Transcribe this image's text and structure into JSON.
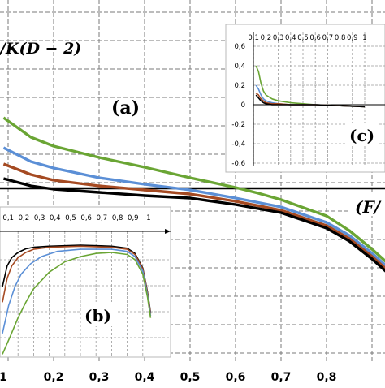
{
  "chart_data": [
    {
      "id": "a",
      "type": "line",
      "panel_label": "(a)",
      "ylabel": "/K(D − 2)",
      "xlabel": "(F/",
      "x_ticks": [
        "1",
        "0,2",
        "0,3",
        "0,4",
        "0,5",
        "0,6",
        "0,7",
        "0,8"
      ],
      "xlim": [
        0.09,
        0.94
      ],
      "ylim": [
        -1.2,
        1.6
      ],
      "grid": true,
      "series": [
        {
          "color": "#6aa534",
          "x": [
            0.09,
            0.15,
            0.2,
            0.3,
            0.4,
            0.5,
            0.6,
            0.65,
            0.7,
            0.8,
            0.85,
            0.9,
            0.94
          ],
          "y": [
            0.87,
            0.63,
            0.52,
            0.38,
            0.26,
            0.13,
            0.01,
            -0.06,
            -0.14,
            -0.34,
            -0.52,
            -0.75,
            -0.95
          ]
        },
        {
          "color": "#5b8fd6",
          "x": [
            0.09,
            0.15,
            0.2,
            0.3,
            0.4,
            0.5,
            0.6,
            0.7,
            0.8,
            0.85,
            0.9,
            0.94
          ],
          "y": [
            0.5,
            0.33,
            0.25,
            0.13,
            0.05,
            -0.02,
            -0.12,
            -0.23,
            -0.42,
            -0.58,
            -0.8,
            -1.0
          ]
        },
        {
          "color": "#a54a22",
          "x": [
            0.09,
            0.15,
            0.2,
            0.3,
            0.4,
            0.5,
            0.6,
            0.7,
            0.8,
            0.85,
            0.9,
            0.94
          ],
          "y": [
            0.3,
            0.17,
            0.1,
            0.03,
            -0.02,
            -0.07,
            -0.16,
            -0.27,
            -0.46,
            -0.62,
            -0.84,
            -1.04
          ]
        },
        {
          "color": "#000000",
          "x": [
            0.09,
            0.15,
            0.2,
            0.3,
            0.4,
            0.5,
            0.6,
            0.7,
            0.8,
            0.85,
            0.9,
            0.94
          ],
          "y": [
            0.12,
            0.03,
            -0.01,
            -0.05,
            -0.09,
            -0.12,
            -0.2,
            -0.3,
            -0.49,
            -0.65,
            -0.87,
            -1.07
          ]
        }
      ]
    },
    {
      "id": "b",
      "type": "line",
      "panel_label": "(b)",
      "x_ticks": [
        "0,1",
        "0,2",
        "0,3",
        "0,4",
        "0,5",
        "0,6",
        "0,7",
        "0,8",
        "0,9",
        "1"
      ],
      "xlim": [
        0,
        1
      ],
      "grid": true,
      "series": [
        {
          "color": "#000000",
          "x": [
            0.0,
            0.03,
            0.06,
            0.1,
            0.15,
            0.2,
            0.3,
            0.5,
            0.7,
            0.8,
            0.85,
            0.9,
            0.93,
            0.95
          ],
          "y": [
            0.6,
            0.8,
            0.88,
            0.93,
            0.965,
            0.98,
            0.99,
            1.0,
            0.99,
            0.97,
            0.92,
            0.78,
            0.55,
            0.35
          ]
        },
        {
          "color": "#a54a22",
          "x": [
            0.0,
            0.03,
            0.06,
            0.1,
            0.15,
            0.2,
            0.3,
            0.5,
            0.7,
            0.8,
            0.85,
            0.9,
            0.93,
            0.95
          ],
          "y": [
            0.45,
            0.68,
            0.8,
            0.88,
            0.93,
            0.96,
            0.98,
            0.99,
            0.98,
            0.96,
            0.91,
            0.77,
            0.54,
            0.34
          ]
        },
        {
          "color": "#5b8fd6",
          "x": [
            0.0,
            0.04,
            0.08,
            0.12,
            0.18,
            0.25,
            0.35,
            0.5,
            0.7,
            0.8,
            0.85,
            0.9,
            0.93,
            0.95
          ],
          "y": [
            0.15,
            0.42,
            0.6,
            0.72,
            0.82,
            0.89,
            0.94,
            0.96,
            0.96,
            0.94,
            0.89,
            0.75,
            0.52,
            0.32
          ]
        },
        {
          "color": "#6aa534",
          "x": [
            0.0,
            0.05,
            0.1,
            0.15,
            0.2,
            0.3,
            0.4,
            0.5,
            0.6,
            0.7,
            0.8,
            0.85,
            0.9,
            0.93,
            0.95
          ],
          "y": [
            -0.05,
            0.12,
            0.3,
            0.45,
            0.58,
            0.74,
            0.84,
            0.89,
            0.92,
            0.93,
            0.91,
            0.86,
            0.72,
            0.5,
            0.3
          ]
        }
      ]
    },
    {
      "id": "c",
      "type": "line",
      "panel_label": "(c)",
      "x_ticks": [
        "0,1",
        "0,2",
        "0,3",
        "0,4",
        "0,5",
        "0,6",
        "0,7",
        "0,8",
        "0,9",
        "1"
      ],
      "y_ticks": [
        "0,6",
        "0,4",
        "0,2",
        "0",
        "-0,2",
        "-0,4",
        "-0,6"
      ],
      "xlim": [
        0,
        1
      ],
      "ylim": [
        -0.6,
        0.6
      ],
      "grid": true,
      "series": [
        {
          "color": "#6aa534",
          "x": [
            0.12,
            0.14,
            0.16,
            0.18,
            0.2,
            0.25,
            0.3,
            0.4,
            0.5,
            0.6,
            0.8,
            1.0
          ],
          "y": [
            0.4,
            0.34,
            0.22,
            0.14,
            0.1,
            0.06,
            0.04,
            0.02,
            0.01,
            0.0,
            -0.01,
            -0.02
          ]
        },
        {
          "color": "#5b8fd6",
          "x": [
            0.12,
            0.14,
            0.16,
            0.18,
            0.2,
            0.25,
            0.3,
            0.4,
            0.5,
            0.6,
            0.8,
            1.0
          ],
          "y": [
            0.2,
            0.16,
            0.1,
            0.06,
            0.04,
            0.02,
            0.01,
            0.0,
            0.0,
            0.0,
            -0.01,
            -0.02
          ]
        },
        {
          "color": "#a54a22",
          "x": [
            0.12,
            0.14,
            0.16,
            0.18,
            0.2,
            0.25,
            0.3,
            0.4,
            0.5,
            0.6,
            0.8,
            1.0
          ],
          "y": [
            0.12,
            0.1,
            0.06,
            0.04,
            0.02,
            0.01,
            0.01,
            0.0,
            0.0,
            0.0,
            -0.01,
            -0.02
          ]
        },
        {
          "color": "#000000",
          "x": [
            0.12,
            0.14,
            0.16,
            0.18,
            0.2,
            0.25,
            0.3,
            0.4,
            0.5,
            0.6,
            0.8,
            1.0
          ],
          "y": [
            0.1,
            0.07,
            0.04,
            0.02,
            0.01,
            0.0,
            0.0,
            0.0,
            0.0,
            0.0,
            -0.01,
            -0.02
          ]
        }
      ]
    }
  ]
}
